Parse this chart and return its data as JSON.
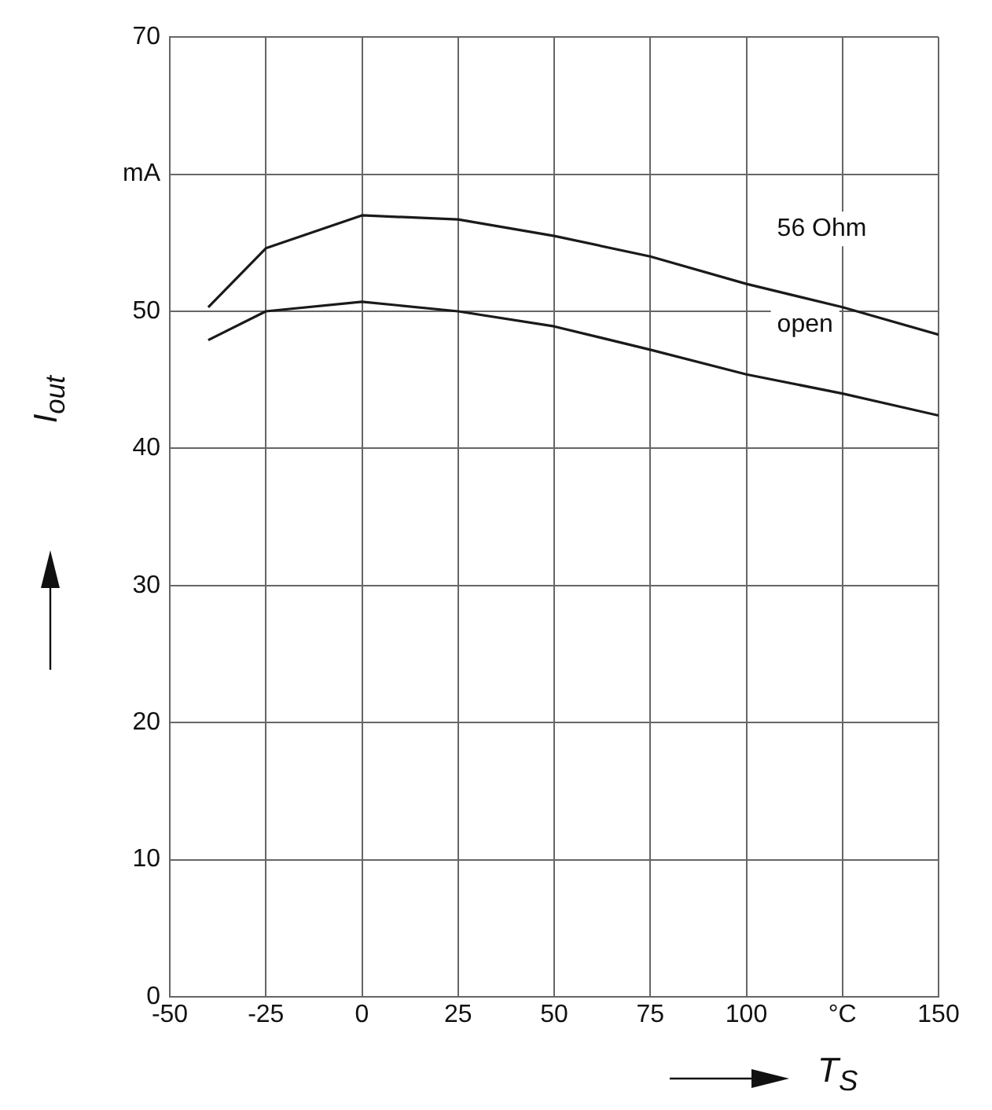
{
  "chart_data": {
    "type": "line",
    "xlabel": "T$_{S}$",
    "ylabel": "I$_{out}$",
    "x": [
      -40,
      -25,
      0,
      25,
      50,
      75,
      100,
      125,
      150
    ],
    "series": [
      {
        "color": "#1a1a1a",
        "values": [
          50.3,
          54.6,
          57.0,
          56.7,
          55.5,
          54.0,
          52.0,
          50.3,
          48.3
        ]
      },
      {
        "color": "#1a1a1a",
        "values": [
          47.9,
          50.0,
          50.7,
          50.0,
          48.9,
          47.2,
          45.4,
          44.0,
          42.4
        ]
      }
    ],
    "annotations": [
      "56 Ohm",
      "open"
    ],
    "xlim": [
      -50,
      150
    ],
    "xticks": [
      -50,
      -25,
      0,
      25,
      50,
      75,
      100,
      {
        "value": 125,
        "label": "°C"
      },
      150
    ],
    "ylim": [
      0,
      70
    ],
    "yticks": [
      0,
      10,
      20,
      30,
      40,
      50,
      {
        "value": 60,
        "label": "mA"
      },
      70
    ],
    "grid": true,
    "legend": false,
    "marker": "none",
    "line_style": "solid"
  }
}
